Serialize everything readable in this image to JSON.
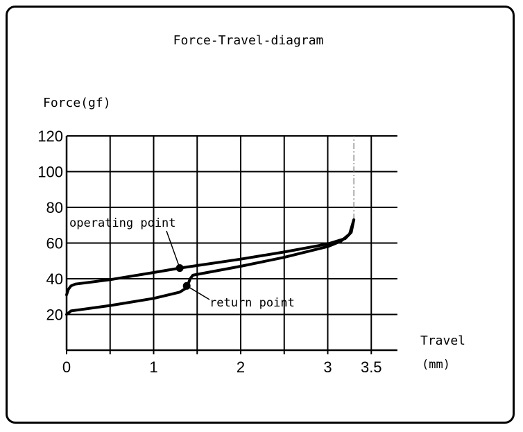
{
  "chart_data": {
    "type": "line",
    "title": "Force-Travel-diagram",
    "ylabel": "Force(gf)",
    "xlabel": "Travel",
    "xunit": "(mm)",
    "xlim": [
      0,
      3.8
    ],
    "ylim": [
      0,
      120
    ],
    "xticks": [
      0,
      1,
      2,
      3,
      3.5
    ],
    "x_tick_labels": [
      "0",
      "1",
      "2",
      "3",
      "3.5"
    ],
    "x_gridlines": [
      0.5,
      1,
      1.5,
      2,
      2.5,
      3,
      3.5
    ],
    "yticks": [
      20,
      40,
      60,
      80,
      100,
      120
    ],
    "y_tick_labels": [
      "20",
      "40",
      "60",
      "80",
      "100",
      "120"
    ],
    "y_gridlines": [
      20,
      40,
      60,
      80,
      100,
      120
    ],
    "grid": true,
    "max_travel_line": {
      "x": 3.3,
      "from_y": 73,
      "to_y": 120
    },
    "series": [
      {
        "curve": "press",
        "x": [
          0,
          0.02,
          0.05,
          0.1,
          0.5,
          1.0,
          1.3,
          2.0,
          2.5,
          3.0,
          3.1,
          3.2,
          3.27,
          3.3
        ],
        "y": [
          31,
          34,
          36,
          37,
          39.5,
          43.5,
          46,
          51,
          55,
          59.5,
          61,
          62.5,
          66,
          73
        ]
      },
      {
        "curve": "release",
        "x": [
          0,
          0.05,
          0.2,
          0.5,
          1.0,
          1.3,
          1.38,
          1.42,
          1.45,
          2.0,
          2.5,
          3.0,
          3.15,
          3.25,
          3.3
        ],
        "y": [
          20,
          22,
          23,
          25,
          29,
          32.5,
          35,
          40,
          42,
          47,
          52,
          58,
          61,
          65,
          73
        ]
      }
    ],
    "annotations": [
      {
        "text": "operating point",
        "x": 1.3,
        "y": 46
      },
      {
        "text": "return point",
        "x": 1.38,
        "y": 36
      }
    ]
  }
}
